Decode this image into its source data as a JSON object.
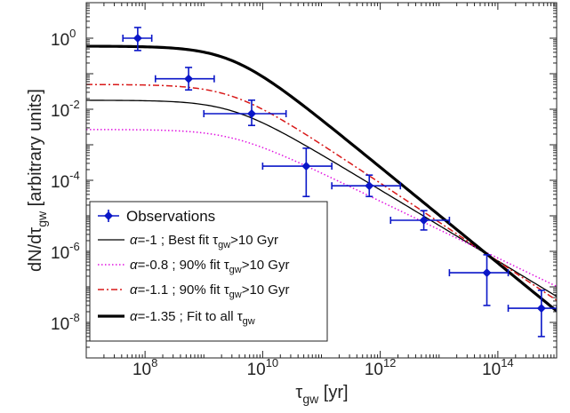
{
  "chart_data": {
    "type": "scatter",
    "xlabel": {
      "main": "τ",
      "sub": "gw",
      "unit": " [yr]"
    },
    "ylabel": {
      "main": "dN/dτ",
      "sub": "gw",
      "unit": " [arbitrary units]"
    },
    "xscale": "log",
    "yscale": "log",
    "xlim": [
      10000000.0,
      1000000000000000.0
    ],
    "ylim": [
      1e-09,
      10.0
    ],
    "x_ticks": [
      {
        "value": 100000000.0,
        "base": "10",
        "exp": "8"
      },
      {
        "value": 10000000000.0,
        "base": "10",
        "exp": "10"
      },
      {
        "value": 1000000000000.0,
        "base": "10",
        "exp": "12"
      },
      {
        "value": 100000000000000.0,
        "base": "10",
        "exp": "14"
      }
    ],
    "y_ticks": [
      {
        "value": 1.0,
        "base": "10",
        "exp": "0"
      },
      {
        "value": 0.01,
        "base": "10",
        "exp": "-2"
      },
      {
        "value": 0.0001,
        "base": "10",
        "exp": "-4"
      },
      {
        "value": 1e-06,
        "base": "10",
        "exp": "-6"
      },
      {
        "value": 1e-08,
        "base": "10",
        "exp": "-8"
      }
    ],
    "grid": false,
    "legend_position": "bottom-left",
    "observations": {
      "name": "Observations",
      "color": "#0a16c8",
      "points": [
        {
          "x": 75000000.0,
          "y": 1.0,
          "xlo": 42000000.0,
          "xhi": 130000000.0,
          "ylo": 0.45,
          "yhi": 2.0
        },
        {
          "x": 550000000.0,
          "y": 0.072,
          "xlo": 150000000.0,
          "xhi": 1500000000.0,
          "ylo": 0.035,
          "yhi": 0.15
        },
        {
          "x": 6500000000.0,
          "y": 0.0075,
          "xlo": 1000000000.0,
          "xhi": 25000000000.0,
          "ylo": 0.0035,
          "yhi": 0.018
        },
        {
          "x": 55000000000.0,
          "y": 0.00025,
          "xlo": 10000000000.0,
          "xhi": 150000000000.0,
          "ylo": 3.5e-05,
          "yhi": 0.0008
        },
        {
          "x": 650000000000.0,
          "y": 7e-05,
          "xlo": 150000000000.0,
          "xhi": 2200000000000.0,
          "ylo": 3.5e-05,
          "yhi": 0.00014
        },
        {
          "x": 5500000000000.0,
          "y": 7.5e-06,
          "xlo": 1500000000000.0,
          "xhi": 15000000000000.0,
          "ylo": 4e-06,
          "yhi": 1.4e-05
        },
        {
          "x": 65000000000000.0,
          "y": 2.5e-07,
          "xlo": 15000000000000.0,
          "xhi": 150000000000000.0,
          "ylo": 3e-08,
          "yhi": 8e-07
        },
        {
          "x": 550000000000000.0,
          "y": 2.5e-08,
          "xlo": 150000000000000.0,
          "xhi": 1000000000000000.0,
          "ylo": 4e-09,
          "yhi": 8e-08
        }
      ]
    },
    "series": [
      {
        "name": "α=-1 ; Best fit τgw>10 Gyr",
        "alpha": "-1",
        "desc": "Best fit τ",
        "tail": ">10 Gyr",
        "color": "#000000",
        "width": 1.3,
        "dash": "",
        "y_at_1e7": 0.018,
        "slope": -1.0
      },
      {
        "name": "α=-0.8 ; 90% fit τgw>10 Gyr",
        "alpha": "-0.8",
        "desc": "90% fit τ",
        "tail": ">10 Gyr",
        "color": "#e011e0",
        "width": 1.5,
        "dash": "1.5,2.5",
        "y_at_1e7": 0.0027,
        "slope": -0.8
      },
      {
        "name": "α=-1.1 ; 90% fit τgw>10 Gyr",
        "alpha": "-1.1",
        "desc": "90% fit τ",
        "tail": ">10 Gyr",
        "color": "#d81818",
        "width": 1.5,
        "dash": "7,3,2,3",
        "y_at_1e7": 0.05,
        "slope": -1.1
      },
      {
        "name": "α=-1.35 ; Fit to all τgw",
        "alpha": "-1.35",
        "desc": "Fit to all τ",
        "tail": "",
        "color": "#000000",
        "width": 3.2,
        "dash": "",
        "y_at_1e7": 0.6,
        "slope": -1.35
      }
    ]
  }
}
